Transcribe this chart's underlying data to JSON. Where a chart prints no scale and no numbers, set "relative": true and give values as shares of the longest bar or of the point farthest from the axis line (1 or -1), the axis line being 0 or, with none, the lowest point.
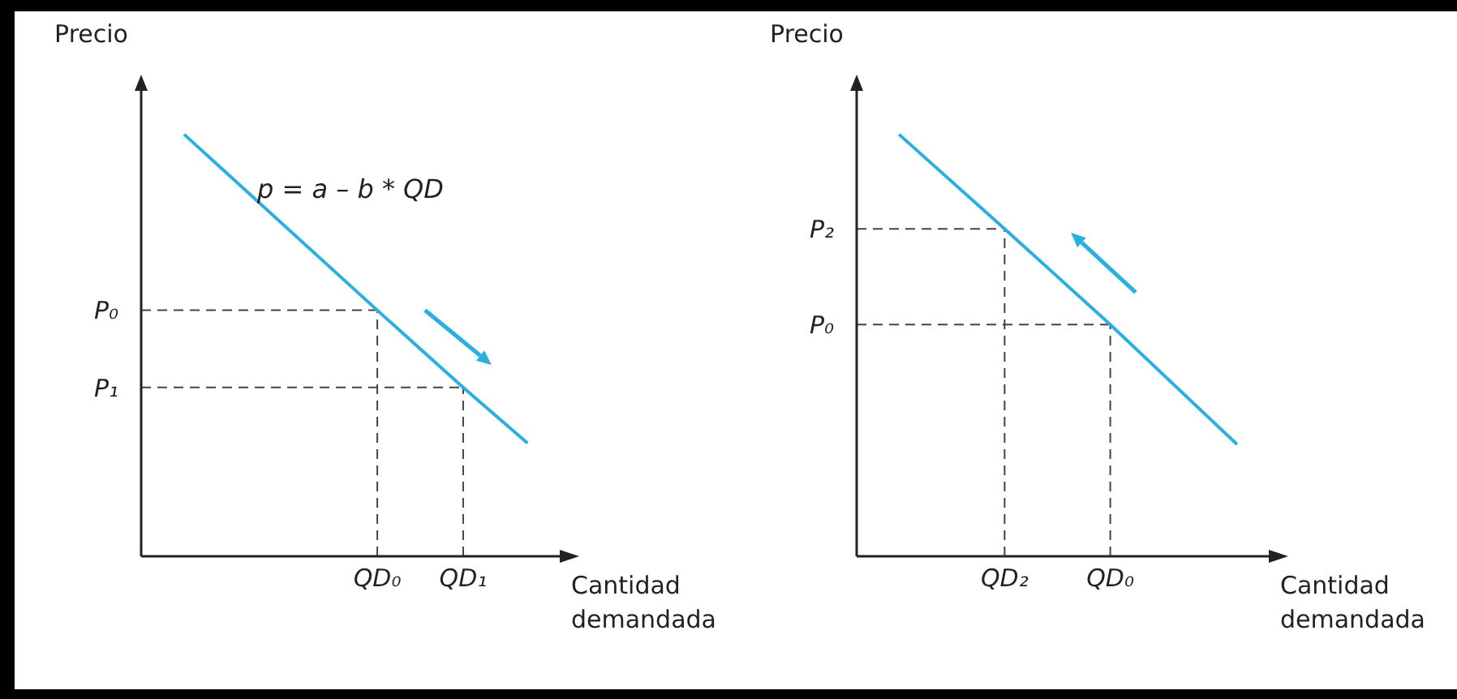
{
  "chart_data": [
    {
      "type": "line",
      "relative": true,
      "xlabel": "Cantidad demandada",
      "ylabel": "Precio",
      "annotations": [
        "p = a – b * QD"
      ],
      "categories": [
        null,
        null,
        null,
        null,
        null,
        null,
        null,
        null,
        null,
        null,
        null,
        "QD₀",
        null,
        null,
        null,
        "QD₁",
        null,
        null,
        null,
        null
      ],
      "series": [
        {
          "color": "#29b0e0",
          "values": [
            null,
            null,
            1,
            null,
            null,
            null,
            null,
            null,
            null,
            null,
            null,
            0.583,
            null,
            null,
            null,
            0.4,
            null,
            null,
            0.268,
            null
          ]
        }
      ],
      "ref_lines": [
        {
          "axis": "y",
          "value": 0.583,
          "label": "P₀",
          "line_style": "dashed"
        },
        {
          "axis": "y",
          "value": 0.4,
          "label": "P₁",
          "line_style": "dashed"
        },
        {
          "axis": "x",
          "value": "QD₀",
          "line_style": "dashed"
        },
        {
          "axis": "x",
          "value": "QD₁",
          "line_style": "dashed"
        }
      ],
      "grid": false,
      "legend": false,
      "marker": "none",
      "line_style": "solid"
    },
    {
      "type": "line",
      "relative": true,
      "xlabel": "Cantidad demandada",
      "ylabel": "Precio",
      "categories": [
        null,
        null,
        null,
        null,
        null,
        null,
        null,
        "QD₂",
        null,
        null,
        null,
        null,
        "QD₀",
        null,
        null,
        null,
        null,
        null,
        null,
        null
      ],
      "series": [
        {
          "color": "#29b0e0",
          "values": [
            null,
            null,
            1,
            null,
            null,
            null,
            null,
            0.776,
            null,
            null,
            null,
            null,
            0.549,
            null,
            null,
            null,
            null,
            null,
            0.265,
            null
          ]
        }
      ],
      "ref_lines": [
        {
          "axis": "y",
          "value": 0.776,
          "label": "P₂",
          "line_style": "dashed"
        },
        {
          "axis": "y",
          "value": 0.549,
          "label": "P₀",
          "line_style": "dashed"
        },
        {
          "axis": "x",
          "value": "QD₂",
          "line_style": "dashed"
        },
        {
          "axis": "x",
          "value": "QD₀",
          "line_style": "dashed"
        }
      ],
      "grid": false,
      "legend": false,
      "marker": "none",
      "line_style": "solid"
    }
  ]
}
